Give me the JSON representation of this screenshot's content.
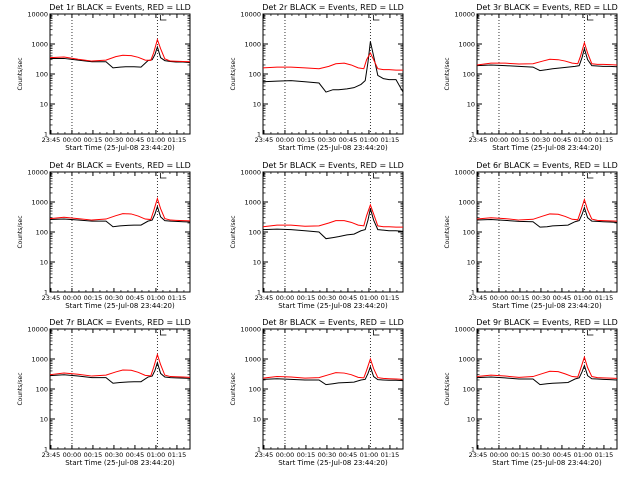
{
  "figure": {
    "xlabel": "Start Time (25-Jul-08 23:44:20)",
    "ylabel": "Counts/sec",
    "xticks": [
      "23:45",
      "00:00",
      "00:15",
      "00:30",
      "00:45",
      "01:00",
      "01:15"
    ],
    "yticks": [
      "1",
      "10",
      "100",
      "1000",
      "10000"
    ],
    "colors": {
      "events": "#000000",
      "lld": "#ff0000",
      "axes": "#000000",
      "background": "#ffffff"
    },
    "marker_label": "L"
  },
  "chart_data": [
    {
      "type": "line",
      "title": "Det 1r BLACK = Events, RED = LLD",
      "x_unit": "minutes after 23:44:20",
      "xlim": [
        0,
        100
      ],
      "ylim": [
        1,
        10000
      ],
      "yscale": "log",
      "vlines_x": [
        15.7,
        76.7
      ],
      "series": [
        {
          "name": "Events",
          "color": "#000000",
          "x": [
            0,
            10,
            20,
            30,
            40,
            45,
            50,
            54,
            60,
            65,
            70,
            73,
            75,
            76.7,
            79,
            82,
            86,
            90,
            95,
            100
          ],
          "y": [
            330,
            330,
            290,
            255,
            255,
            160,
            170,
            175,
            175,
            170,
            280,
            300,
            450,
            800,
            350,
            280,
            260,
            250,
            250,
            240
          ]
        },
        {
          "name": "LLD",
          "color": "#ff0000",
          "x": [
            0,
            10,
            20,
            30,
            40,
            47,
            52,
            58,
            63,
            68,
            72,
            74,
            76.7,
            79,
            82,
            86,
            90,
            95,
            100
          ],
          "y": [
            350,
            370,
            310,
            270,
            290,
            380,
            420,
            410,
            360,
            290,
            285,
            500,
            1400,
            700,
            320,
            270,
            265,
            260,
            255
          ]
        }
      ]
    },
    {
      "type": "line",
      "title": "Det 2r BLACK = Events, RED = LLD",
      "x_unit": "minutes after 23:44:20",
      "xlim": [
        0,
        100
      ],
      "ylim": [
        1,
        10000
      ],
      "yscale": "log",
      "vlines_x": [
        15.7,
        76.7
      ],
      "series": [
        {
          "name": "Events",
          "color": "#000000",
          "x": [
            0,
            10,
            20,
            30,
            40,
            45,
            50,
            54,
            60,
            65,
            70,
            73,
            75,
            76.7,
            79,
            82,
            86,
            90,
            95,
            100
          ],
          "y": [
            55,
            58,
            60,
            55,
            50,
            25,
            30,
            30,
            32,
            35,
            45,
            60,
            250,
            1200,
            400,
            90,
            70,
            65,
            65,
            25
          ]
        },
        {
          "name": "LLD",
          "color": "#ff0000",
          "x": [
            0,
            10,
            20,
            30,
            40,
            47,
            52,
            58,
            63,
            68,
            72,
            74,
            76.7,
            79,
            82,
            86,
            90,
            95,
            100
          ],
          "y": [
            160,
            170,
            170,
            160,
            150,
            180,
            220,
            230,
            200,
            160,
            150,
            300,
            500,
            300,
            150,
            140,
            140,
            135,
            135
          ]
        }
      ]
    },
    {
      "type": "line",
      "title": "Det 3r BLACK = Events, RED = LLD",
      "x_unit": "minutes after 23:44:20",
      "xlim": [
        0,
        100
      ],
      "ylim": [
        1,
        10000
      ],
      "yscale": "log",
      "vlines_x": [
        15.7,
        76.7
      ],
      "series": [
        {
          "name": "Events",
          "color": "#000000",
          "x": [
            0,
            10,
            20,
            30,
            40,
            45,
            50,
            54,
            60,
            65,
            70,
            73,
            75,
            76.7,
            79,
            82,
            86,
            90,
            95,
            100
          ],
          "y": [
            190,
            200,
            190,
            180,
            170,
            130,
            140,
            150,
            160,
            170,
            180,
            190,
            350,
            700,
            300,
            190,
            185,
            180,
            180,
            175
          ]
        },
        {
          "name": "LLD",
          "color": "#ff0000",
          "x": [
            0,
            10,
            20,
            30,
            40,
            47,
            52,
            58,
            63,
            68,
            72,
            74,
            76.7,
            79,
            82,
            86,
            90,
            95,
            100
          ],
          "y": [
            200,
            230,
            230,
            215,
            220,
            270,
            310,
            300,
            270,
            230,
            220,
            400,
            1100,
            500,
            220,
            210,
            210,
            205,
            200
          ]
        }
      ]
    },
    {
      "type": "line",
      "title": "Det 4r BLACK = Events, RED = LLD",
      "x_unit": "minutes after 23:44:20",
      "xlim": [
        0,
        100
      ],
      "ylim": [
        1,
        10000
      ],
      "yscale": "log",
      "vlines_x": [
        15.7,
        76.7
      ],
      "series": [
        {
          "name": "Events",
          "color": "#000000",
          "x": [
            0,
            10,
            20,
            30,
            40,
            45,
            50,
            54,
            60,
            65,
            70,
            73,
            75,
            76.7,
            79,
            82,
            86,
            90,
            95,
            100
          ],
          "y": [
            260,
            270,
            250,
            230,
            230,
            150,
            160,
            165,
            170,
            170,
            230,
            250,
            400,
            700,
            320,
            240,
            230,
            225,
            220,
            215
          ]
        },
        {
          "name": "LLD",
          "color": "#ff0000",
          "x": [
            0,
            10,
            20,
            30,
            40,
            47,
            52,
            58,
            63,
            68,
            72,
            74,
            76.7,
            79,
            82,
            86,
            90,
            95,
            100
          ],
          "y": [
            280,
            310,
            280,
            250,
            270,
            350,
            410,
            400,
            340,
            270,
            260,
            500,
            1300,
            600,
            280,
            250,
            245,
            240,
            235
          ]
        }
      ]
    },
    {
      "type": "line",
      "title": "Det 5r BLACK = Events, RED = LLD",
      "x_unit": "minutes after 23:44:20",
      "xlim": [
        0,
        100
      ],
      "ylim": [
        1,
        10000
      ],
      "yscale": "log",
      "vlines_x": [
        15.7,
        76.7
      ],
      "series": [
        {
          "name": "Events",
          "color": "#000000",
          "x": [
            0,
            10,
            20,
            30,
            40,
            45,
            50,
            54,
            60,
            65,
            70,
            73,
            75,
            76.7,
            79,
            82,
            86,
            90,
            95,
            100
          ],
          "y": [
            120,
            125,
            120,
            110,
            100,
            60,
            65,
            70,
            80,
            85,
            110,
            120,
            250,
            600,
            250,
            120,
            115,
            110,
            110,
            105
          ]
        },
        {
          "name": "LLD",
          "color": "#ff0000",
          "x": [
            0,
            10,
            20,
            30,
            40,
            47,
            52,
            58,
            63,
            68,
            72,
            74,
            76.7,
            79,
            82,
            86,
            90,
            95,
            100
          ],
          "y": [
            150,
            170,
            170,
            155,
            160,
            200,
            240,
            240,
            210,
            170,
            160,
            350,
            800,
            400,
            160,
            150,
            150,
            145,
            145
          ]
        }
      ]
    },
    {
      "type": "line",
      "title": "Det 6r BLACK = Events, RED = LLD",
      "x_unit": "minutes after 23:44:20",
      "xlim": [
        0,
        100
      ],
      "ylim": [
        1,
        10000
      ],
      "yscale": "log",
      "vlines_x": [
        15.7,
        76.7
      ],
      "series": [
        {
          "name": "Events",
          "color": "#000000",
          "x": [
            0,
            10,
            20,
            30,
            40,
            45,
            50,
            54,
            60,
            65,
            70,
            73,
            75,
            76.7,
            79,
            82,
            86,
            90,
            95,
            100
          ],
          "y": [
            250,
            260,
            245,
            225,
            220,
            145,
            150,
            160,
            165,
            170,
            220,
            240,
            380,
            650,
            300,
            230,
            225,
            220,
            215,
            210
          ]
        },
        {
          "name": "LLD",
          "color": "#ff0000",
          "x": [
            0,
            10,
            20,
            30,
            40,
            47,
            52,
            58,
            63,
            68,
            72,
            74,
            76.7,
            79,
            82,
            86,
            90,
            95,
            100
          ],
          "y": [
            270,
            300,
            280,
            250,
            265,
            340,
            400,
            390,
            330,
            265,
            255,
            480,
            1200,
            550,
            270,
            245,
            240,
            235,
            230
          ]
        }
      ]
    },
    {
      "type": "line",
      "title": "Det 7r BLACK = Events, RED = LLD",
      "x_unit": "minutes after 23:44:20",
      "xlim": [
        0,
        100
      ],
      "ylim": [
        1,
        10000
      ],
      "yscale": "log",
      "vlines_x": [
        15.7,
        76.7
      ],
      "series": [
        {
          "name": "Events",
          "color": "#000000",
          "x": [
            0,
            10,
            20,
            30,
            40,
            45,
            50,
            54,
            60,
            65,
            70,
            73,
            75,
            76.7,
            79,
            82,
            86,
            90,
            95,
            100
          ],
          "y": [
            280,
            300,
            270,
            240,
            240,
            155,
            165,
            170,
            175,
            175,
            250,
            270,
            420,
            750,
            330,
            250,
            240,
            235,
            230,
            225
          ]
        },
        {
          "name": "LLD",
          "color": "#ff0000",
          "x": [
            0,
            10,
            20,
            30,
            40,
            47,
            52,
            58,
            63,
            68,
            72,
            74,
            76.7,
            79,
            82,
            86,
            90,
            95,
            100
          ],
          "y": [
            300,
            340,
            310,
            270,
            290,
            370,
            430,
            420,
            360,
            285,
            275,
            520,
            1400,
            650,
            290,
            260,
            255,
            250,
            245
          ]
        }
      ]
    },
    {
      "type": "line",
      "title": "Det 8r BLACK = Events, RED = LLD",
      "x_unit": "minutes after 23:44:20",
      "xlim": [
        0,
        100
      ],
      "ylim": [
        1,
        10000
      ],
      "yscale": "log",
      "vlines_x": [
        15.7,
        76.7
      ],
      "series": [
        {
          "name": "Events",
          "color": "#000000",
          "x": [
            0,
            10,
            20,
            30,
            40,
            45,
            50,
            54,
            60,
            65,
            70,
            73,
            75,
            76.7,
            79,
            82,
            86,
            90,
            95,
            100
          ],
          "y": [
            210,
            220,
            210,
            200,
            200,
            140,
            150,
            160,
            165,
            170,
            200,
            210,
            330,
            550,
            260,
            205,
            200,
            195,
            195,
            190
          ]
        },
        {
          "name": "LLD",
          "color": "#ff0000",
          "x": [
            0,
            10,
            20,
            30,
            40,
            47,
            52,
            58,
            63,
            68,
            72,
            74,
            76.7,
            79,
            82,
            86,
            90,
            95,
            100
          ],
          "y": [
            230,
            260,
            250,
            230,
            240,
            300,
            350,
            340,
            300,
            245,
            235,
            420,
            1000,
            480,
            240,
            225,
            220,
            215,
            210
          ]
        }
      ]
    },
    {
      "type": "line",
      "title": "Det 9r BLACK = Events, RED = LLD",
      "x_unit": "minutes after 23:44:20",
      "xlim": [
        0,
        100
      ],
      "ylim": [
        1,
        10000
      ],
      "yscale": "log",
      "vlines_x": [
        15.7,
        76.7
      ],
      "series": [
        {
          "name": "Events",
          "color": "#000000",
          "x": [
            0,
            10,
            20,
            30,
            40,
            45,
            50,
            54,
            60,
            65,
            70,
            73,
            75,
            76.7,
            79,
            82,
            86,
            90,
            95,
            100
          ],
          "y": [
            240,
            250,
            235,
            215,
            215,
            140,
            150,
            155,
            160,
            165,
            215,
            235,
            370,
            600,
            280,
            220,
            215,
            210,
            205,
            200
          ]
        },
        {
          "name": "LLD",
          "color": "#ff0000",
          "x": [
            0,
            10,
            20,
            30,
            40,
            47,
            52,
            58,
            63,
            68,
            72,
            74,
            76.7,
            79,
            82,
            86,
            90,
            95,
            100
          ],
          "y": [
            260,
            290,
            270,
            245,
            260,
            330,
            390,
            380,
            320,
            260,
            250,
            470,
            1150,
            520,
            260,
            240,
            235,
            230,
            225
          ]
        }
      ]
    }
  ]
}
